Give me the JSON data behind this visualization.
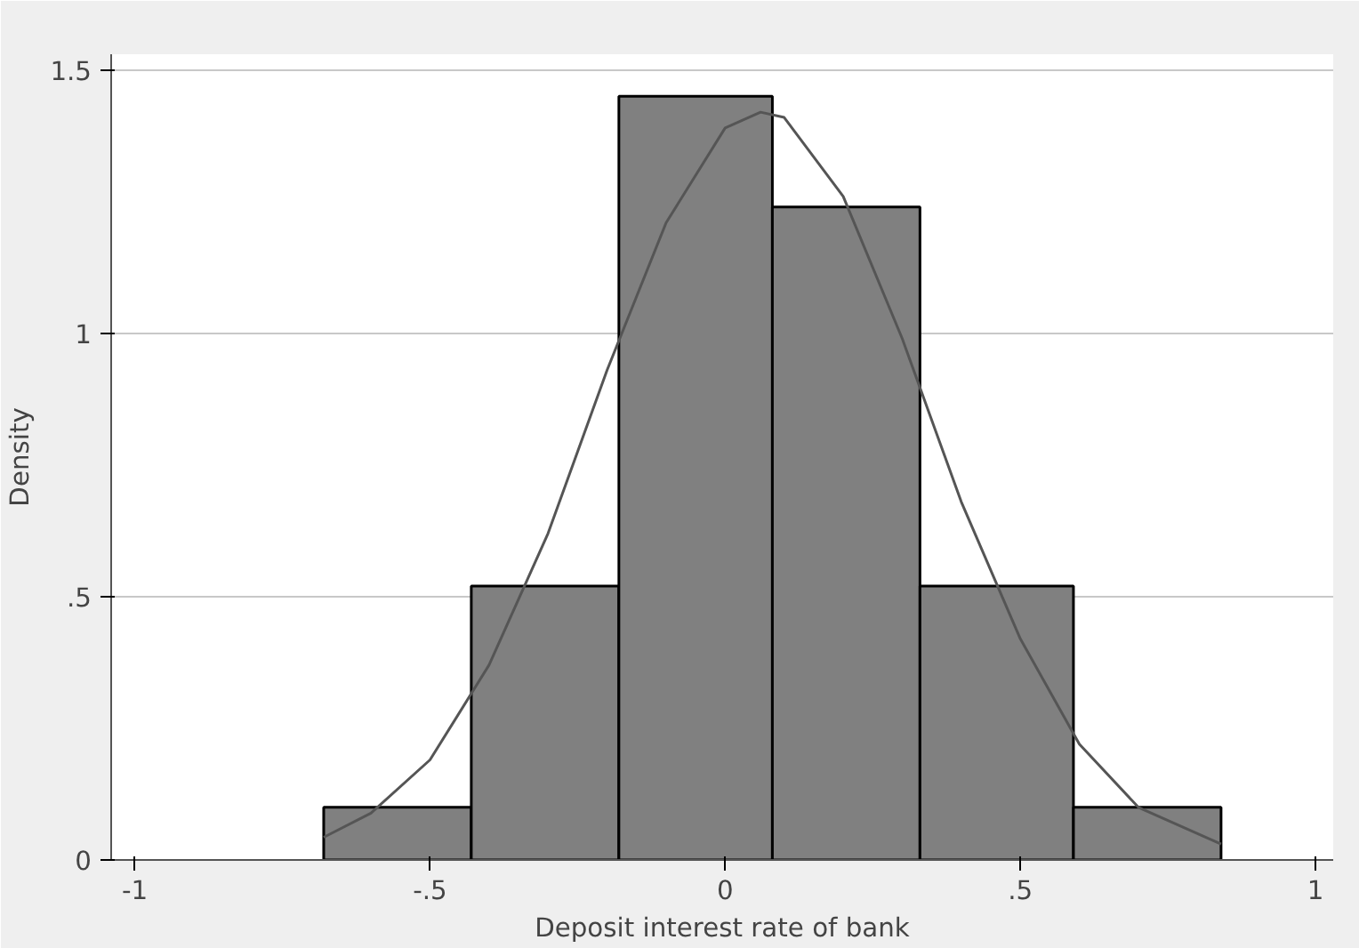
{
  "chart_data": {
    "type": "histogram",
    "xlabel": "Deposit interest rate of bank",
    "ylabel": "Density",
    "bins": [
      -0.68,
      -0.43,
      -0.18,
      0.08,
      0.33,
      0.59,
      0.84
    ],
    "series": [
      {
        "color": "#808080",
        "values": [
          0.1,
          0.52,
          1.45,
          1.24,
          0.52,
          0.1
        ]
      },
      {
        "type": "line",
        "color": "#555555",
        "x": [
          -0.68,
          -0.6,
          -0.5,
          -0.4,
          -0.3,
          -0.2,
          -0.1,
          0,
          0.06,
          0.1,
          0.2,
          0.3,
          0.4,
          0.5,
          0.6,
          0.7,
          0.84
        ],
        "values": [
          0.043,
          0.089,
          0.19,
          0.37,
          0.62,
          0.93,
          1.21,
          1.39,
          1.42,
          1.41,
          1.26,
          0.99,
          0.68,
          0.42,
          0.22,
          0.1,
          0.03
        ]
      }
    ],
    "xlim": [
      -1.04,
      1.03
    ],
    "ylim": [
      0,
      1.53
    ],
    "xticks": [
      {
        "value": -1,
        "label": "-1"
      },
      {
        "value": -0.5,
        "label": "-.5"
      },
      0,
      {
        "value": 0.5,
        "label": ".5"
      },
      1
    ],
    "yticks": [
      0,
      {
        "value": 0.5,
        "label": ".5"
      },
      1,
      1.5
    ],
    "grid": "y"
  }
}
